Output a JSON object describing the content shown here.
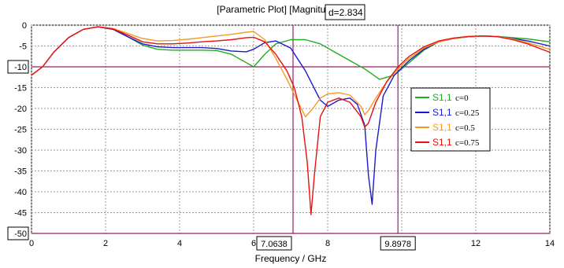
{
  "chart_data": {
    "type": "line",
    "title": "[Parametric Plot] [Magnitude in dB]",
    "xlabel": "Frequency / GHz",
    "ylabel": "",
    "xlim": [
      0,
      14
    ],
    "ylim": [
      -50,
      0
    ],
    "x_ticks": [
      0,
      2,
      4,
      6,
      8,
      10,
      12,
      14
    ],
    "y_ticks": [
      0,
      -5,
      -10,
      -15,
      -20,
      -25,
      -30,
      -35,
      -40,
      -45,
      -50
    ],
    "grid": true,
    "legend_position": "right",
    "markers": {
      "horizontal": [
        {
          "y": -10,
          "label": "-10"
        },
        {
          "y": -50,
          "label": "-50"
        }
      ],
      "vertical": [
        {
          "x": 7.0638,
          "label": "7.0638"
        },
        {
          "x": 9.8978,
          "label": "9.8978"
        }
      ],
      "delta_label": "d=2.834"
    },
    "series": [
      {
        "name": "S1,1",
        "param": "c=0",
        "color": "#1fae1f",
        "x": [
          0,
          0.3,
          0.6,
          1.0,
          1.4,
          1.8,
          2.2,
          2.6,
          3.0,
          3.4,
          3.8,
          4.2,
          4.6,
          5.0,
          5.4,
          5.8,
          6.0,
          6.3,
          6.6,
          7.0,
          7.4,
          7.8,
          8.2,
          8.6,
          9.0,
          9.4,
          9.8,
          10.2,
          10.6,
          11.0,
          11.4,
          11.8,
          12.2,
          12.6,
          13.0,
          13.4,
          14.0
        ],
        "y": [
          -12.0,
          -10.0,
          -6.5,
          -3.0,
          -1.0,
          -0.4,
          -1.0,
          -2.8,
          -4.8,
          -5.8,
          -6.0,
          -6.0,
          -6.0,
          -6.1,
          -7.0,
          -9.0,
          -10.0,
          -7.0,
          -4.5,
          -3.5,
          -3.5,
          -4.5,
          -6.5,
          -8.5,
          -10.5,
          -13.0,
          -12.0,
          -9.0,
          -6.0,
          -4.0,
          -3.2,
          -2.8,
          -2.6,
          -2.7,
          -3.0,
          -3.3,
          -4.0
        ]
      },
      {
        "name": "S1,1",
        "param": "c=0.25",
        "color": "#1a1acc",
        "x": [
          0,
          0.3,
          0.6,
          1.0,
          1.4,
          1.8,
          2.2,
          2.6,
          3.0,
          3.4,
          3.8,
          4.2,
          4.6,
          5.0,
          5.4,
          5.8,
          6.0,
          6.3,
          6.6,
          7.0,
          7.4,
          7.8,
          8.0,
          8.3,
          8.6,
          8.8,
          9.0,
          9.1,
          9.2,
          9.3,
          9.5,
          9.8,
          10.2,
          10.6,
          11.0,
          11.4,
          11.8,
          12.2,
          12.6,
          13.0,
          13.4,
          14.0
        ],
        "y": [
          -12.0,
          -10.0,
          -6.5,
          -3.0,
          -1.0,
          -0.4,
          -1.0,
          -2.8,
          -4.5,
          -5.2,
          -5.4,
          -5.4,
          -5.4,
          -5.6,
          -6.2,
          -6.4,
          -5.8,
          -4.2,
          -3.8,
          -5.5,
          -11.0,
          -18.0,
          -19.5,
          -18.0,
          -17.5,
          -19.0,
          -24.0,
          -36.0,
          -43.0,
          -30.0,
          -17.0,
          -12.0,
          -8.5,
          -5.8,
          -4.0,
          -3.2,
          -2.8,
          -2.6,
          -2.7,
          -3.2,
          -3.8,
          -5.0
        ]
      },
      {
        "name": "S1,1",
        "param": "c=0.5",
        "color": "#f59a23",
        "x": [
          0,
          0.3,
          0.6,
          1.0,
          1.4,
          1.8,
          2.2,
          2.6,
          3.0,
          3.4,
          3.8,
          4.2,
          4.6,
          5.0,
          5.4,
          5.8,
          6.0,
          6.3,
          6.6,
          6.9,
          7.2,
          7.4,
          7.6,
          7.8,
          8.0,
          8.3,
          8.6,
          8.9,
          9.0,
          9.1,
          9.3,
          9.6,
          9.9,
          10.2,
          10.6,
          11.0,
          11.4,
          11.8,
          12.2,
          12.6,
          13.0,
          13.4,
          14.0
        ],
        "y": [
          -12.0,
          -10.0,
          -6.5,
          -3.0,
          -1.0,
          -0.4,
          -0.8,
          -2.0,
          -3.2,
          -3.8,
          -3.7,
          -3.4,
          -3.0,
          -2.6,
          -2.2,
          -1.7,
          -1.5,
          -3.5,
          -8.0,
          -13.0,
          -18.5,
          -22.0,
          -20.0,
          -17.5,
          -16.5,
          -16.2,
          -16.8,
          -19.5,
          -21.5,
          -20.5,
          -17.5,
          -13.5,
          -10.5,
          -8.0,
          -5.5,
          -4.0,
          -3.2,
          -2.8,
          -2.6,
          -2.7,
          -3.3,
          -4.2,
          -5.8
        ]
      },
      {
        "name": "S1,1",
        "param": "c=0.75",
        "color": "#e81010",
        "x": [
          0,
          0.3,
          0.6,
          1.0,
          1.4,
          1.8,
          2.2,
          2.6,
          3.0,
          3.4,
          3.8,
          4.2,
          4.6,
          5.0,
          5.4,
          5.8,
          6.0,
          6.3,
          6.6,
          6.9,
          7.1,
          7.3,
          7.45,
          7.55,
          7.65,
          7.8,
          8.0,
          8.3,
          8.6,
          8.9,
          9.0,
          9.1,
          9.3,
          9.6,
          9.9,
          10.2,
          10.6,
          11.0,
          11.4,
          11.8,
          12.2,
          12.6,
          13.0,
          13.4,
          14.0
        ],
        "y": [
          -12.0,
          -10.0,
          -6.5,
          -3.0,
          -1.0,
          -0.4,
          -0.9,
          -2.4,
          -4.0,
          -4.5,
          -4.5,
          -4.3,
          -4.0,
          -3.8,
          -3.5,
          -3.0,
          -2.9,
          -4.0,
          -7.0,
          -11.0,
          -15.0,
          -22.0,
          -33.0,
          -45.5,
          -35.0,
          -22.0,
          -18.5,
          -17.5,
          -18.5,
          -22.0,
          -24.5,
          -23.5,
          -18.5,
          -13.5,
          -10.0,
          -7.5,
          -5.2,
          -3.8,
          -3.1,
          -2.7,
          -2.6,
          -2.8,
          -3.5,
          -4.5,
          -6.5
        ]
      }
    ]
  }
}
